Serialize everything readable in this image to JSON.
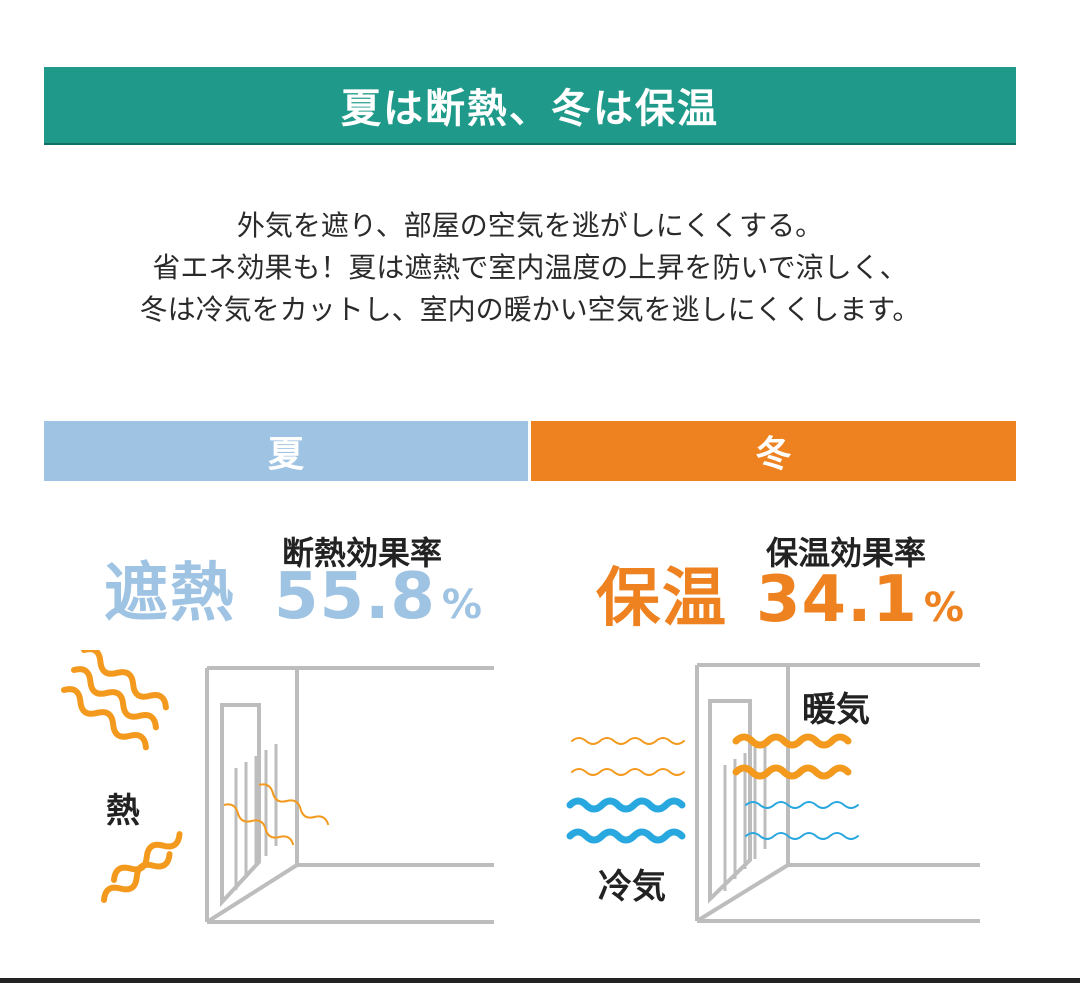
{
  "banner": {
    "title": "夏は断熱、冬は保温"
  },
  "intro": {
    "lines": [
      "外気を遮り、部屋の空気を逃がしにくくする。",
      "省エネ効果も！夏は遮熱で室内温度の上昇を防いで涼しく、",
      "冬は冷気をカットし、室内の暖かい空気を逃しにくくします。"
    ]
  },
  "summer": {
    "header": "夏",
    "big_label": "遮熱",
    "rate_title": "断熱効果率",
    "rate_value": "55.8",
    "rate_unit": "%",
    "diagram_label": "熱",
    "color": "#9fc3e3",
    "wave_color": "#f39a1e"
  },
  "winter": {
    "header": "冬",
    "big_label": "保温",
    "rate_title": "保温効果率",
    "rate_value": "34.1",
    "rate_unit": "%",
    "warm_label": "暖気",
    "cold_label": "冷気",
    "color": "#ef8220",
    "warm_wave_color": "#f39a1e",
    "cold_wave_color": "#29a8e0"
  },
  "icons": {
    "heat_waves": "heat-wave-icon",
    "cold_waves": "cold-wave-icon",
    "window_frame": "window-frame-icon"
  }
}
